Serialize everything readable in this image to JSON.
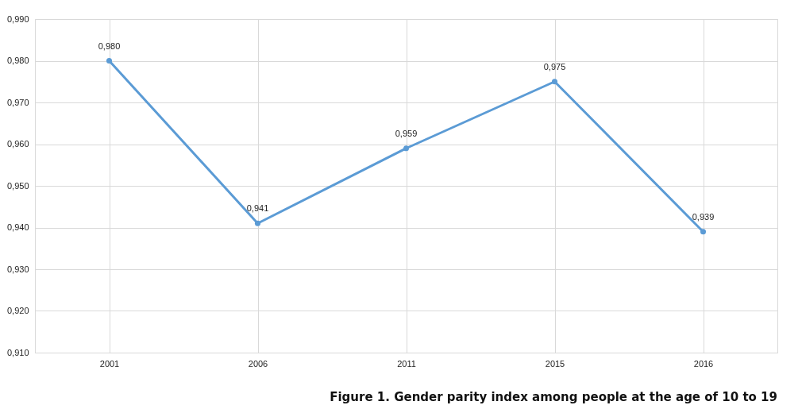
{
  "chart_data": {
    "type": "line",
    "title": "Figure 1. Gender parity index among people at the age of 10 to 19",
    "categories": [
      "2001",
      "2006",
      "2011",
      "2015",
      "2016"
    ],
    "series": [
      {
        "color": "#5b9bd5",
        "values": [
          0.98,
          0.941,
          0.959,
          0.975,
          0.939
        ]
      }
    ],
    "value_labels": [
      "0,980",
      "0,941",
      "0,959",
      "0,975",
      "0,939"
    ],
    "ylim": [
      0.91,
      0.99
    ],
    "yticks": [
      {
        "value": 0.91,
        "label": "0,910"
      },
      {
        "value": 0.92,
        "label": "0,920"
      },
      {
        "value": 0.93,
        "label": "0,930"
      },
      {
        "value": 0.94,
        "label": "0,940"
      },
      {
        "value": 0.95,
        "label": "0,950"
      },
      {
        "value": 0.96,
        "label": "0,960"
      },
      {
        "value": 0.97,
        "label": "0,970"
      },
      {
        "value": 0.98,
        "label": "0,980"
      },
      {
        "value": 0.99,
        "label": "0,990"
      }
    ],
    "grid": true,
    "marker": "circle",
    "line_style": "solid"
  }
}
